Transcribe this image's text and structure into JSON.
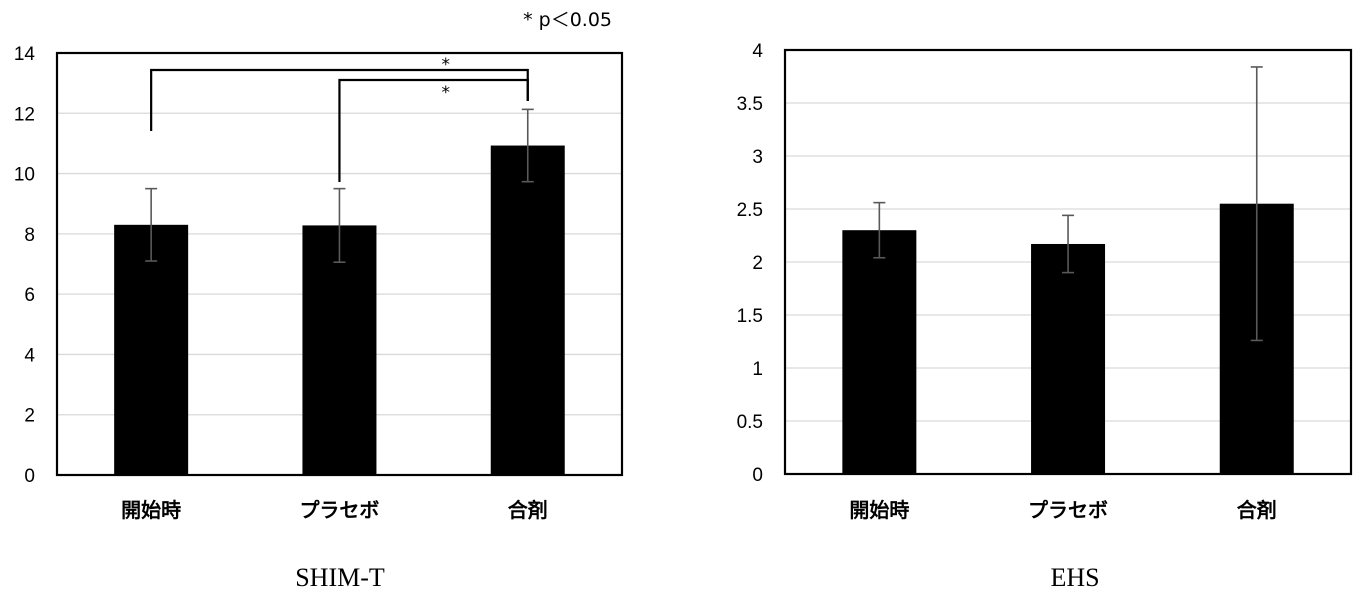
{
  "chart_data": [
    {
      "type": "bar",
      "title": "SHIM-T",
      "categories": [
        "開始時",
        "プラセボ",
        "合剤"
      ],
      "values": [
        8.3,
        8.28,
        10.93
      ],
      "errors": [
        1.2,
        1.22,
        1.2
      ],
      "ylim": [
        0,
        14
      ],
      "yticks": [
        0,
        2,
        4,
        6,
        8,
        10,
        12,
        14
      ],
      "grid": true,
      "bar_color": "#000000",
      "significance": [
        {
          "from": 0,
          "to": 2,
          "label": "*"
        },
        {
          "from": 1,
          "to": 2,
          "label": "*"
        }
      ],
      "note": "* p＜0.05"
    },
    {
      "type": "bar",
      "title": "EHS",
      "categories": [
        "開始時",
        "プラセボ",
        "合剤"
      ],
      "values": [
        2.3,
        2.17,
        2.55
      ],
      "errors": [
        0.26,
        0.27,
        1.29
      ],
      "ylim": [
        0,
        4
      ],
      "yticks": [
        0,
        0.5,
        1,
        1.5,
        2,
        2.5,
        3,
        3.5,
        4
      ],
      "grid": true,
      "bar_color": "#000000"
    }
  ]
}
